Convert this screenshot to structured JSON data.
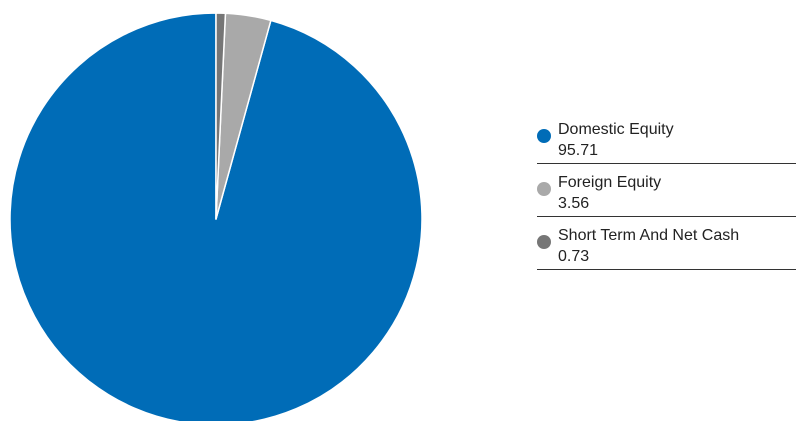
{
  "chart_data": {
    "type": "pie",
    "title": "",
    "slices": [
      {
        "label": "Domestic Equity",
        "value": 95.71,
        "value_label": "95.71",
        "color": "#006CB7"
      },
      {
        "label": "Foreign Equity",
        "value": 3.56,
        "value_label": "3.56",
        "color": "#A9A9A9"
      },
      {
        "label": "Short Term And Net Cash",
        "value": 0.73,
        "value_label": "0.73",
        "color": "#767676"
      }
    ],
    "start": "12 o'clock",
    "direction": "counter-clockwise",
    "legend_placement": "right",
    "slice_border_color": "#ffffff"
  }
}
